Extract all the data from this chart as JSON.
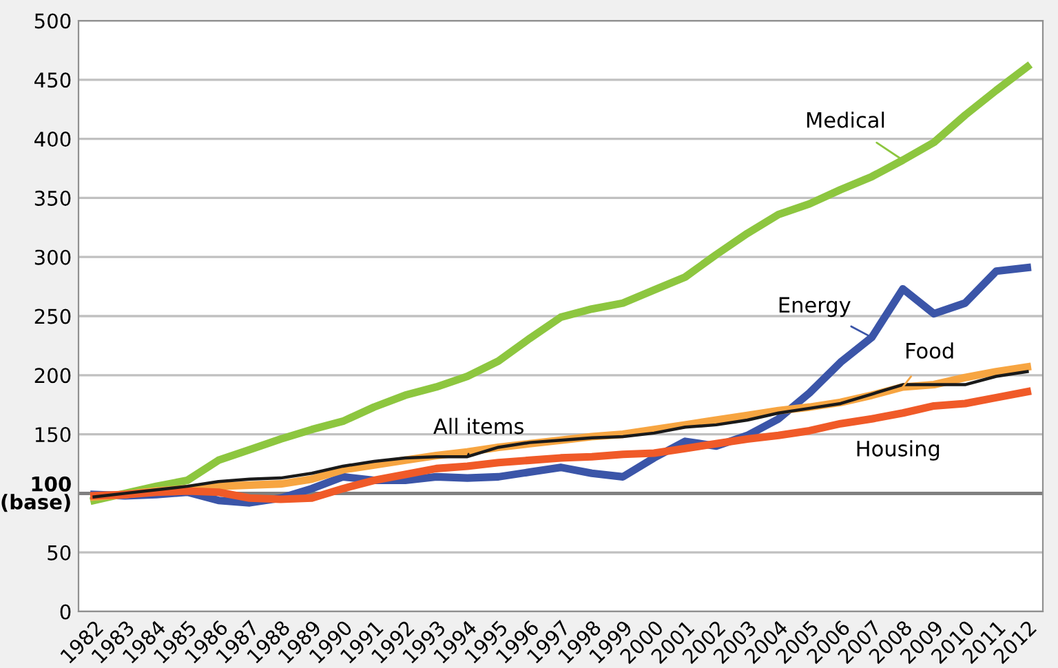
{
  "chart_data": {
    "type": "line",
    "categories": [
      "1982",
      "1983",
      "1984",
      "1985",
      "1986",
      "1987",
      "1988",
      "1989",
      "1990",
      "1991",
      "1992",
      "1993",
      "1994",
      "1995",
      "1996",
      "1997",
      "1998",
      "1999",
      "2000",
      "2001",
      "2002",
      "2003",
      "2004",
      "2005",
      "2006",
      "2007",
      "2008",
      "2009",
      "2010",
      "2011",
      "2012"
    ],
    "series": [
      {
        "name": "Medical",
        "color": "#8dc63f",
        "values": [
          94,
          100,
          106,
          111,
          128,
          137,
          146,
          154,
          161,
          173,
          183,
          190,
          199,
          212,
          231,
          249,
          256,
          261,
          272,
          283,
          302,
          320,
          336,
          345,
          357,
          368,
          382,
          397,
          420,
          441,
          461
        ]
      },
      {
        "name": "Energy",
        "color": "#3b55a8",
        "values": [
          99,
          98,
          99,
          101,
          94,
          92,
          96,
          104,
          114,
          111,
          111,
          114,
          113,
          114,
          118,
          122,
          117,
          114,
          130,
          144,
          140,
          149,
          163,
          185,
          211,
          232,
          273,
          252,
          261,
          288,
          291
        ]
      },
      {
        "name": "Food",
        "color": "#f7a541",
        "values": [
          97,
          99,
          102,
          104,
          106,
          107,
          108,
          112,
          120,
          124,
          128,
          132,
          135,
          139,
          142,
          145,
          148,
          150,
          154,
          158,
          162,
          166,
          170,
          173,
          177,
          183,
          190,
          192,
          198,
          203,
          207
        ]
      },
      {
        "name": "Housing",
        "color": "#f05a28",
        "values": [
          98,
          99,
          101,
          102,
          101,
          96,
          95,
          96,
          104,
          111,
          116,
          121,
          123,
          126,
          128,
          130,
          131,
          133,
          134,
          138,
          142,
          146,
          149,
          153,
          159,
          163,
          168,
          174,
          176,
          181,
          186
        ]
      },
      {
        "name": "All items",
        "color": "#1a1a1a",
        "values": [
          97,
          100,
          103,
          106,
          110,
          112,
          113,
          117,
          123,
          127,
          130,
          131,
          131,
          139,
          143,
          145,
          147,
          148,
          151,
          156,
          158,
          162,
          168,
          172,
          176,
          184,
          192,
          192,
          192,
          199,
          203
        ]
      }
    ],
    "ylim": [
      0,
      500
    ],
    "yticks": [
      0,
      50,
      {
        "value": 100,
        "label": "100\n(base)"
      },
      150,
      200,
      250,
      300,
      350,
      400,
      450,
      500
    ],
    "grid": "y",
    "legend": false,
    "marker": "none",
    "line_style": "solid",
    "ref_lines": [
      {
        "axis": "y",
        "value": 100,
        "color": "#808080"
      }
    ]
  }
}
